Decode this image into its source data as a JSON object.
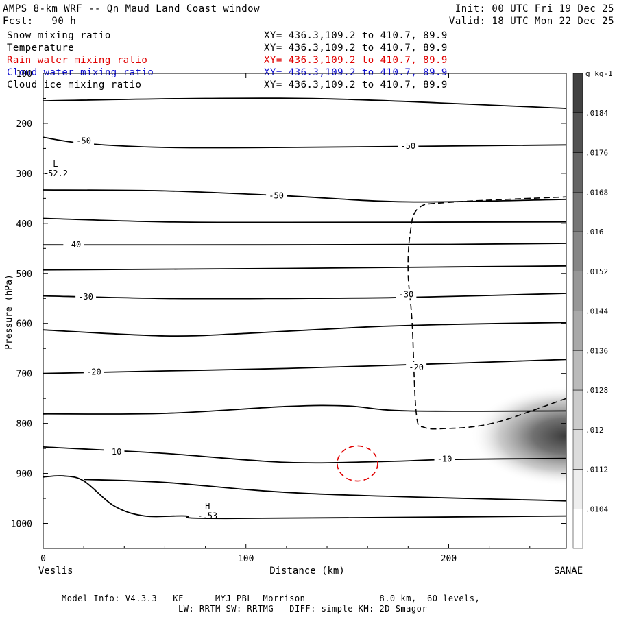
{
  "header": {
    "title": "AMPS 8-km WRF -- Qn Maud Land Coast window",
    "forecast": "Fcst:   90 h",
    "init": "Init: 00 UTC Fri 19 Dec 25",
    "valid": "Valid: 18 UTC Mon 22 Dec 25"
  },
  "fields": [
    {
      "name": "Snow mixing ratio",
      "xy": "XY= 436.3,109.2 to 410.7, 89.9",
      "color": "#000000"
    },
    {
      "name": "Temperature",
      "xy": "XY= 436.3,109.2 to 410.7, 89.9",
      "color": "#000000"
    },
    {
      "name": "Rain water mixing ratio",
      "xy": "XY= 436.3,109.2 to 410.7, 89.9",
      "color": "#e00000"
    },
    {
      "name": "Cloud water mixing ratio",
      "xy": "XY= 436.3,109.2 to 410.7, 89.9",
      "color": "#1010d0"
    },
    {
      "name": "Cloud ice mixing ratio",
      "xy": "XY= 436.3,109.2 to 410.7, 89.9",
      "color": "#000000"
    }
  ],
  "footer": {
    "line1": "Model Info: V4.3.3   KF      MYJ PBL  Morrison              8.0 km,  60 levels,",
    "line2": "LW: RRTM SW: RRTMG   DIFF: simple KM: 2D Smagor"
  },
  "chart_data": {
    "type": "contour cross-section",
    "xlabel": "Distance (km)",
    "ylabel": "Pressure (hPa)",
    "xlim": [
      0,
      258
    ],
    "ylim": [
      1050,
      100
    ],
    "xticks": [
      0,
      100,
      200
    ],
    "yticks": [
      100,
      200,
      300,
      400,
      500,
      600,
      700,
      800,
      900,
      1000
    ],
    "left_endpoint": "Veslis",
    "right_endpoint": "SANAE",
    "colorbar": {
      "unit": "g kg-1",
      "levels": [
        ".0104",
        ".0112",
        ".012",
        ".0128",
        ".0136",
        ".0144",
        ".0152",
        ".016",
        ".0168",
        ".0176",
        ".0184"
      ]
    },
    "extremes": [
      {
        "type": "L",
        "value": "-52.2",
        "x": 2,
        "p": 300
      },
      {
        "type": "H",
        "value": "-.53",
        "x": 77,
        "p": 985
      }
    ],
    "temperature_contours": [
      {
        "points": [
          [
            0,
            155
          ],
          [
            80,
            150
          ],
          [
            150,
            152
          ],
          [
            258,
            170
          ]
        ]
      },
      {
        "label": "-50",
        "points": [
          [
            0,
            228
          ],
          [
            20,
            240
          ],
          [
            60,
            248
          ],
          [
            120,
            248
          ],
          [
            258,
            243
          ]
        ]
      },
      {
        "label": "-50",
        "points": [
          [
            0,
            333
          ],
          [
            60,
            335
          ],
          [
            120,
            345
          ],
          [
            180,
            357
          ],
          [
            258,
            352
          ]
        ]
      },
      {
        "points": [
          [
            0,
            390
          ],
          [
            60,
            397
          ],
          [
            120,
            398
          ],
          [
            258,
            397
          ]
        ]
      },
      {
        "label": "-40",
        "points": [
          [
            0,
            443
          ],
          [
            100,
            443
          ],
          [
            200,
            442
          ],
          [
            258,
            440
          ]
        ]
      },
      {
        "points": [
          [
            0,
            493
          ],
          [
            120,
            490
          ],
          [
            200,
            487
          ],
          [
            258,
            485
          ]
        ]
      },
      {
        "label": "-30",
        "points": [
          [
            0,
            545
          ],
          [
            60,
            550
          ],
          [
            120,
            550
          ],
          [
            180,
            548
          ],
          [
            258,
            540
          ]
        ]
      },
      {
        "points": [
          [
            0,
            613
          ],
          [
            60,
            625
          ],
          [
            100,
            620
          ],
          [
            160,
            607
          ],
          [
            200,
            602
          ],
          [
            258,
            598
          ]
        ]
      },
      {
        "label": "-20",
        "points": [
          [
            0,
            700
          ],
          [
            60,
            695
          ],
          [
            120,
            690
          ],
          [
            200,
            680
          ],
          [
            258,
            672
          ]
        ]
      },
      {
        "points": [
          [
            0,
            781
          ],
          [
            60,
            780
          ],
          [
            120,
            766
          ],
          [
            150,
            765
          ],
          [
            180,
            775
          ],
          [
            258,
            775
          ]
        ]
      },
      {
        "label": "-10",
        "points": [
          [
            0,
            847
          ],
          [
            60,
            860
          ],
          [
            120,
            878
          ],
          [
            170,
            876
          ],
          [
            200,
            872
          ],
          [
            258,
            870
          ]
        ]
      },
      {
        "points": [
          [
            0,
            907
          ],
          [
            10,
            905
          ],
          [
            20,
            915
          ],
          [
            35,
            965
          ],
          [
            50,
            985
          ],
          [
            70,
            985
          ],
          [
            90,
            990
          ],
          [
            258,
            985
          ]
        ]
      },
      {
        "points": [
          [
            20,
            912
          ],
          [
            60,
            918
          ],
          [
            130,
            940
          ],
          [
            258,
            955
          ]
        ]
      }
    ],
    "contour_labels": [
      {
        "text": "-50",
        "x": 20,
        "p": 235
      },
      {
        "text": "-50",
        "x": 180,
        "p": 245
      },
      {
        "text": "-50",
        "x": 115,
        "p": 345
      },
      {
        "text": "-40",
        "x": 15,
        "p": 443
      },
      {
        "text": "-30",
        "x": 21,
        "p": 547
      },
      {
        "text": "-30",
        "x": 179,
        "p": 542
      },
      {
        "text": "-20",
        "x": 25,
        "p": 697
      },
      {
        "text": "-20",
        "x": 184,
        "p": 688
      },
      {
        "text": "-10",
        "x": 35,
        "p": 857
      },
      {
        "text": "-10",
        "x": 198,
        "p": 871
      }
    ],
    "cloud_ice_dashed": {
      "points": [
        [
          258,
          750
        ],
        [
          230,
          790
        ],
        [
          215,
          805
        ],
        [
          200,
          810
        ],
        [
          188,
          808
        ],
        [
          184,
          780
        ],
        [
          182,
          600
        ],
        [
          180,
          500
        ],
        [
          181,
          420
        ],
        [
          185,
          370
        ],
        [
          200,
          358
        ],
        [
          258,
          347
        ]
      ]
    },
    "rain_water_contour": {
      "center": [
        155,
        880
      ],
      "radius_x": 10,
      "radius_p": 35
    },
    "snow_shading": {
      "center": [
        258,
        825
      ],
      "spread_x": 45,
      "spread_p": 100,
      "max": 0.0168
    }
  }
}
